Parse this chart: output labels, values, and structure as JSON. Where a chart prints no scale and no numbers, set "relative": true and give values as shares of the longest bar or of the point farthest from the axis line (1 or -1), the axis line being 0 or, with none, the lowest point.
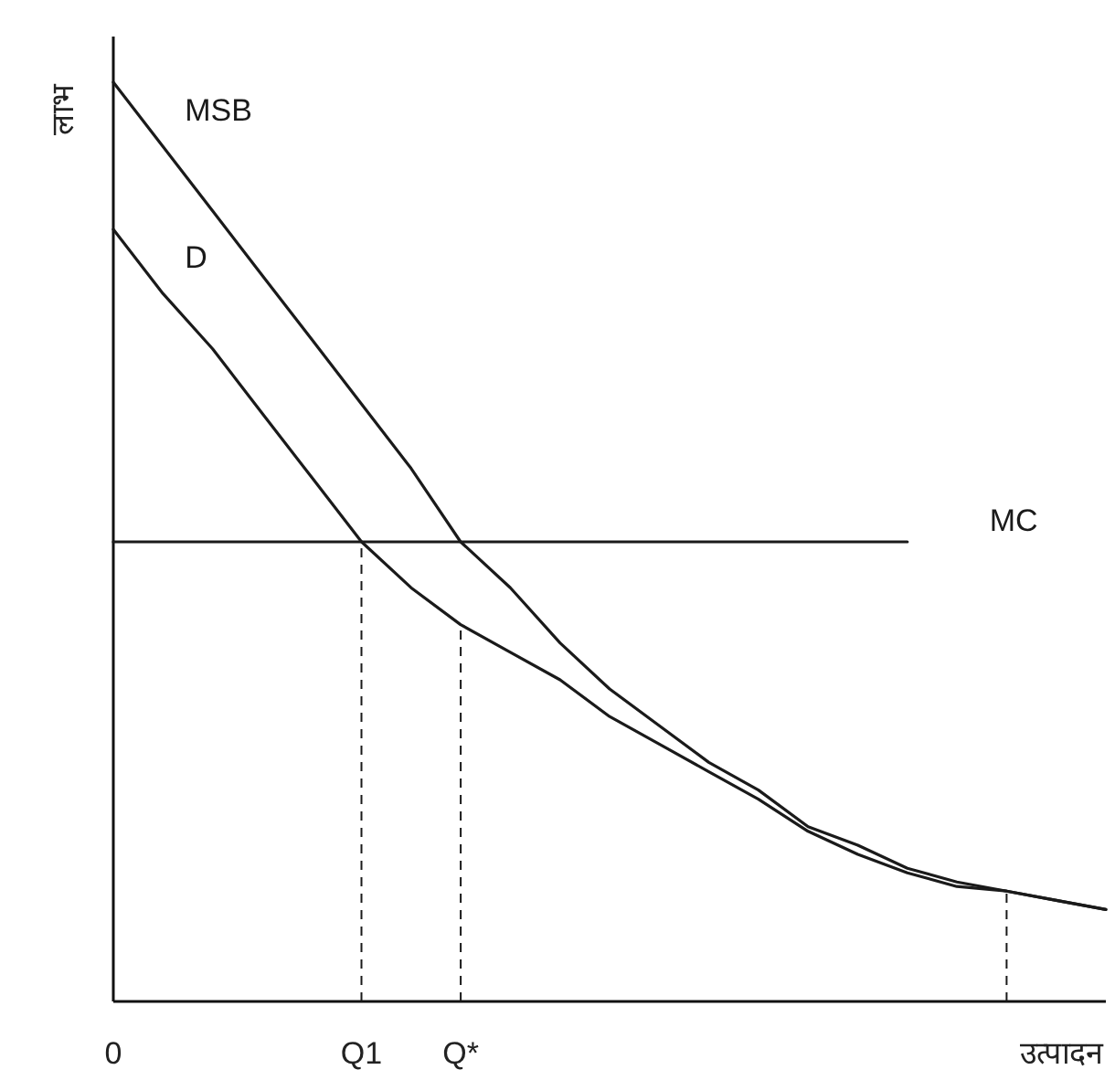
{
  "chart_data": {
    "type": "line",
    "relative": true,
    "xlabel": "उत्पादन",
    "ylabel": "लाभ",
    "line_style": "solid",
    "categories": [
      "0",
      null,
      null,
      null,
      null,
      "Q1",
      null,
      "Q*",
      null,
      null,
      null,
      null,
      null,
      null,
      null,
      null,
      null,
      null,
      null,
      null,
      null
    ],
    "series": [
      {
        "name": "MSB",
        "color": "#1a1a1a",
        "values": [
          1.0,
          0.93,
          0.86,
          0.79,
          0.72,
          0.65,
          0.58,
          0.5,
          0.45,
          0.39,
          0.34,
          0.3,
          0.26,
          0.23,
          0.19,
          0.17,
          0.145,
          0.13,
          0.12,
          0.11,
          0.1
        ]
      },
      {
        "name": "D",
        "color": "#1a1a1a",
        "values": [
          0.84,
          0.77,
          0.71,
          0.64,
          0.57,
          0.5,
          0.45,
          0.41,
          0.38,
          0.35,
          0.31,
          0.28,
          0.25,
          0.22,
          0.185,
          0.16,
          0.14,
          0.125,
          0.12,
          0.11,
          0.1
        ]
      },
      {
        "name": "MC",
        "color": "#1a1a1a",
        "values": [
          0.5,
          0.5,
          0.5,
          0.5,
          0.5,
          0.5,
          0.5,
          0.5,
          0.5,
          0.5,
          0.5,
          0.5,
          0.5,
          0.5,
          0.5,
          0.5,
          0.5,
          null,
          null,
          null,
          null
        ]
      }
    ],
    "ref_lines": [
      {
        "axis": "x",
        "value": "Q1",
        "label": null,
        "line_style": "dashed",
        "color": "#1a1a1a"
      },
      {
        "axis": "x",
        "value": "Q*",
        "label": null,
        "line_style": "dashed",
        "color": "#1a1a1a"
      }
    ]
  }
}
